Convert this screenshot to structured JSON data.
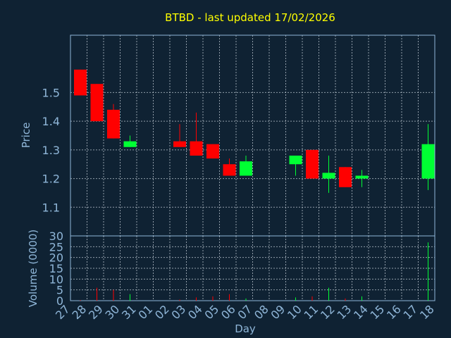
{
  "chart_data": {
    "type": "candlestick",
    "title": "BTBD - last updated 17/02/2026",
    "xlabel": "Day",
    "price_ylabel": "Price",
    "volume_ylabel": "Volume (0000)",
    "x_ticks": [
      "27",
      "28",
      "29",
      "30",
      "31",
      "01",
      "02",
      "03",
      "04",
      "05",
      "06",
      "07",
      "08",
      "09",
      "10",
      "11",
      "12",
      "13",
      "14",
      "15",
      "16",
      "17",
      "18"
    ],
    "price_ylim": [
      1.0,
      1.7
    ],
    "price_ticks": [
      "1.1",
      "1.2",
      "1.3",
      "1.4",
      "1.5"
    ],
    "volume_ylim": [
      0,
      30
    ],
    "volume_ticks": [
      "0",
      "5",
      "10",
      "15",
      "20",
      "25",
      "30"
    ],
    "grid": true,
    "colors": {
      "background": "#0f2233",
      "title": "#ffff00",
      "axis_text": "#8fb6d8",
      "frame": "#8fb6d8",
      "grid": "#c8d2dc",
      "up": "#00ff33",
      "down": "#ff0000"
    },
    "series": [
      {
        "date": "27",
        "open": 1.58,
        "high": 1.58,
        "low": 1.49,
        "close": 1.49,
        "volume": 0.3
      },
      {
        "date": "28",
        "open": 1.53,
        "high": 1.53,
        "low": 1.4,
        "close": 1.4,
        "volume": 6
      },
      {
        "date": "29",
        "open": 1.44,
        "high": 1.46,
        "low": 1.34,
        "close": 1.34,
        "volume": 5
      },
      {
        "date": "30",
        "open": 1.31,
        "high": 1.35,
        "low": 1.31,
        "close": 1.33,
        "volume": 3
      },
      {
        "date": "02",
        "open": 1.33,
        "high": 1.39,
        "low": 1.31,
        "close": 1.31,
        "volume": 0.5
      },
      {
        "date": "03",
        "open": 1.33,
        "high": 1.43,
        "low": 1.28,
        "close": 1.28,
        "volume": 1.5
      },
      {
        "date": "04",
        "open": 1.32,
        "high": 1.32,
        "low": 1.27,
        "close": 1.27,
        "volume": 2
      },
      {
        "date": "05",
        "open": 1.25,
        "high": 1.27,
        "low": 1.21,
        "close": 1.21,
        "volume": 3
      },
      {
        "date": "06",
        "open": 1.21,
        "high": 1.28,
        "low": 1.21,
        "close": 1.26,
        "volume": 1
      },
      {
        "date": "09",
        "open": 1.25,
        "high": 1.28,
        "low": 1.21,
        "close": 1.28,
        "volume": 1.5
      },
      {
        "date": "10",
        "open": 1.3,
        "high": 1.3,
        "low": 1.2,
        "close": 1.2,
        "volume": 2
      },
      {
        "date": "11",
        "open": 1.2,
        "high": 1.28,
        "low": 1.15,
        "close": 1.22,
        "volume": 6
      },
      {
        "date": "12",
        "open": 1.24,
        "high": 1.24,
        "low": 1.17,
        "close": 1.17,
        "volume": 1
      },
      {
        "date": "13",
        "open": 1.2,
        "high": 1.23,
        "low": 1.17,
        "close": 1.21,
        "volume": 2
      },
      {
        "date": "17",
        "open": 1.2,
        "high": 1.39,
        "low": 1.16,
        "close": 1.32,
        "volume": 27
      }
    ]
  }
}
